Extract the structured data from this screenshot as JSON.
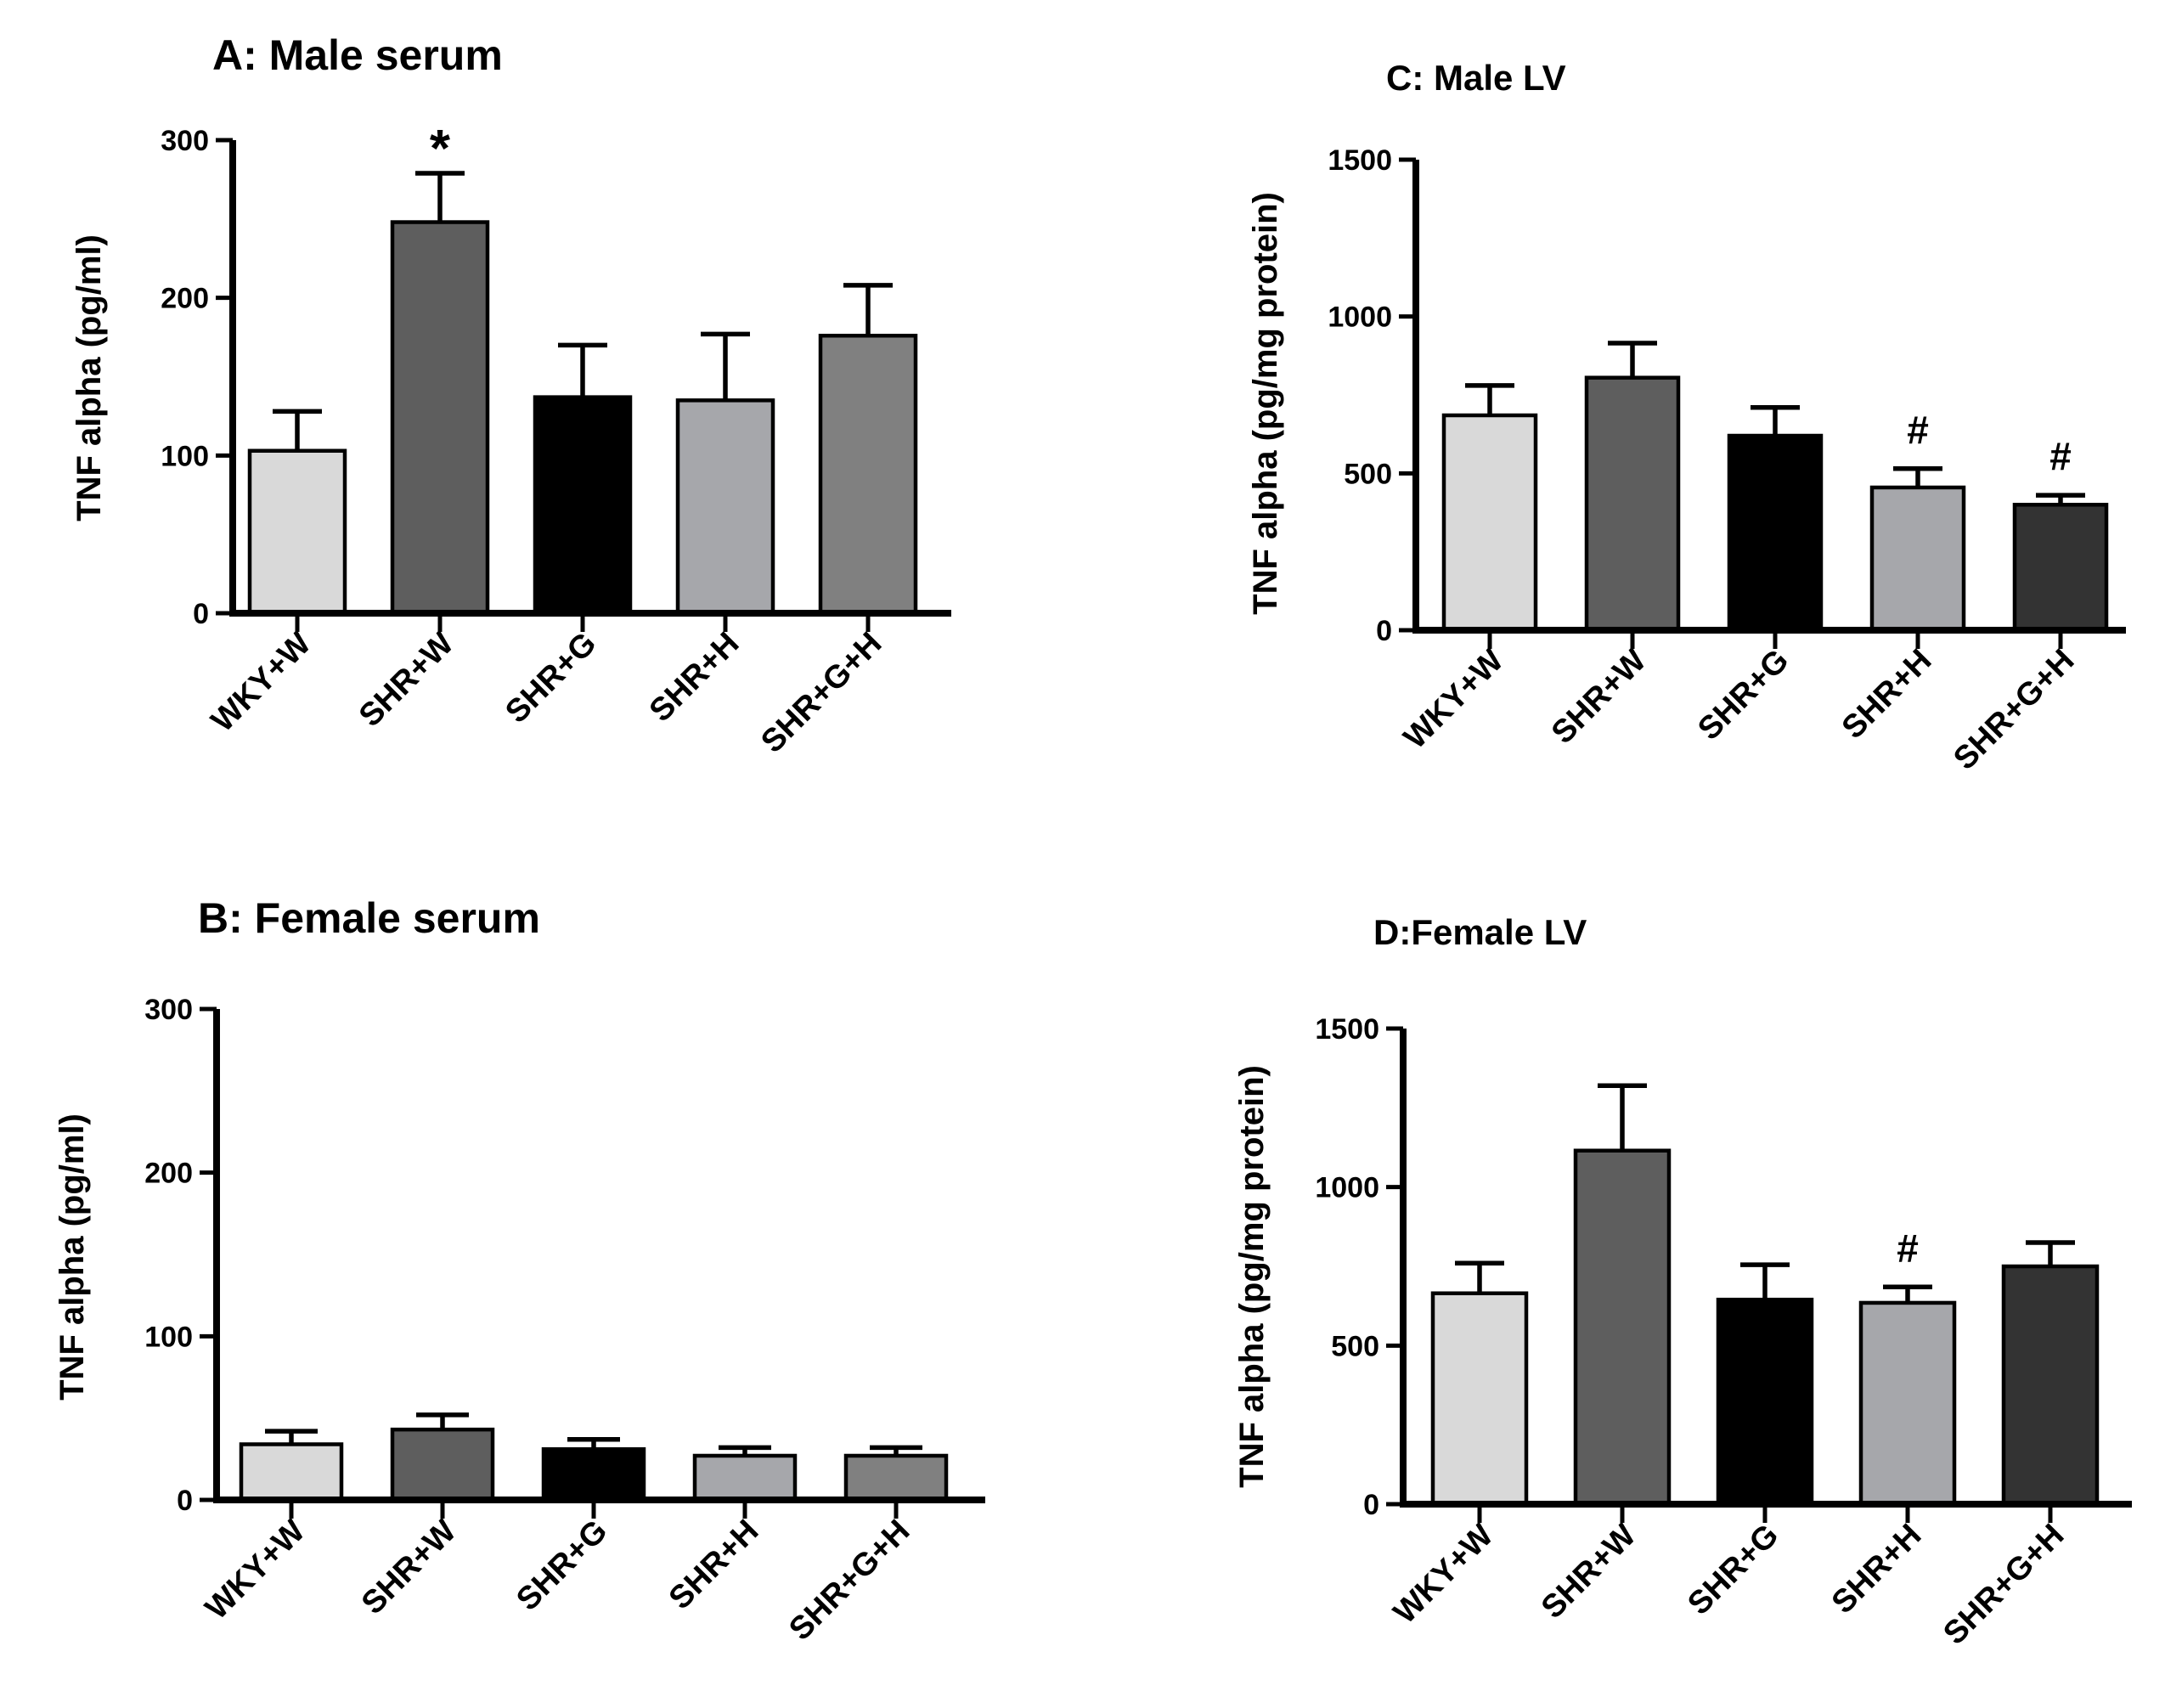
{
  "chart_data": [
    {
      "id": "A",
      "type": "bar",
      "title": "A: Male serum",
      "xlabel": "",
      "ylabel": "TNF alpha (pg/ml)",
      "ylim": [
        0,
        300
      ],
      "yticks": [
        0,
        100,
        200,
        300
      ],
      "categories": [
        "WKY+W",
        "SHR+W",
        "SHR+G",
        "SHR+H",
        "SHR+G+H"
      ],
      "values": [
        103,
        248,
        137,
        135,
        176
      ],
      "errors": [
        25,
        31,
        33,
        42,
        32
      ],
      "colors": [
        "#d9d9d9",
        "#5e5e5e",
        "#000000",
        "#a6a7ab",
        "#808080"
      ],
      "annotations": [
        "",
        "*",
        "",
        "",
        ""
      ],
      "grid": false,
      "legend": "none"
    },
    {
      "id": "B",
      "type": "bar",
      "title": "B: Female serum",
      "xlabel": "",
      "ylabel": "TNF alpha (pg/ml)",
      "ylim": [
        0,
        300
      ],
      "yticks": [
        0,
        100,
        200,
        300
      ],
      "categories": [
        "WKY+W",
        "SHR+W",
        "SHR+G",
        "SHR+H",
        "SHR+G+H"
      ],
      "values": [
        34,
        43,
        31,
        27,
        27
      ],
      "errors": [
        8,
        9,
        6,
        5,
        5
      ],
      "colors": [
        "#d9d9d9",
        "#5e5e5e",
        "#000000",
        "#a6a7ab",
        "#808080"
      ],
      "annotations": [
        "",
        "",
        "",
        "",
        ""
      ],
      "grid": false,
      "legend": "none"
    },
    {
      "id": "C",
      "type": "bar",
      "title": "C: Male LV",
      "xlabel": "",
      "ylabel": "TNF alpha (pg/mg protein)",
      "ylim": [
        0,
        1500
      ],
      "yticks": [
        0,
        500,
        1000,
        1500
      ],
      "categories": [
        "WKY+W",
        "SHR+W",
        "SHR+G",
        "SHR+H",
        "SHR+G+H"
      ],
      "values": [
        685,
        805,
        620,
        455,
        400
      ],
      "errors": [
        95,
        110,
        90,
        60,
        30
      ],
      "colors": [
        "#d9d9d9",
        "#5e5e5e",
        "#000000",
        "#a6a7ab",
        "#333333"
      ],
      "annotations": [
        "",
        "",
        "",
        "#",
        "#"
      ],
      "grid": false,
      "legend": "none"
    },
    {
      "id": "D",
      "type": "bar",
      "title": "D:Female LV",
      "xlabel": "",
      "ylabel": "TNF alpha (pg/mg protein)",
      "ylim": [
        0,
        1500
      ],
      "yticks": [
        0,
        500,
        1000,
        1500
      ],
      "categories": [
        "WKY+W",
        "SHR+W",
        "SHR+G",
        "SHR+H",
        "SHR+G+H"
      ],
      "values": [
        665,
        1115,
        645,
        635,
        750
      ],
      "errors": [
        95,
        205,
        110,
        50,
        75
      ],
      "colors": [
        "#d9d9d9",
        "#5e5e5e",
        "#000000",
        "#a6a7ab",
        "#333333"
      ],
      "annotations": [
        "",
        "",
        "",
        "#",
        ""
      ],
      "grid": false,
      "legend": "none"
    }
  ]
}
